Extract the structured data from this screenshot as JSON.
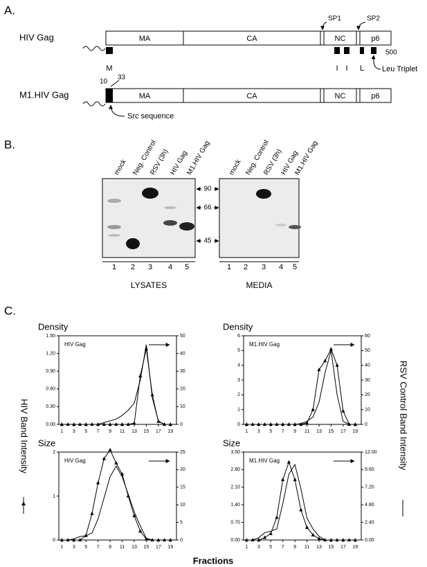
{
  "panel_a": {
    "label": "A.",
    "constructs": [
      {
        "name": "HIV Gag",
        "domains": [
          "MA",
          "CA",
          "NC",
          "p6"
        ]
      },
      {
        "name": "M1.HIV Gag",
        "domains": [
          "MA",
          "CA",
          "NC",
          "p6"
        ]
      }
    ],
    "spacers": [
      "SP1",
      "SP2"
    ],
    "markers": [
      "M",
      "I",
      "I",
      "L"
    ],
    "end_label": "500",
    "leu_label": "Leu Triplet",
    "src_positions": [
      "10",
      "33"
    ],
    "src_label": "Src sequence"
  },
  "panel_b": {
    "label": "B.",
    "lanes": [
      "mock",
      "Neg. Control",
      "RSV (3h)",
      "HIV Gag",
      "M1.HIV Gag"
    ],
    "lane_numbers": [
      "1",
      "2",
      "3",
      "4",
      "5"
    ],
    "size_markers": [
      "90",
      "66",
      "45"
    ],
    "gels": [
      "LYSATES",
      "MEDIA"
    ]
  },
  "panel_c": {
    "label": "C.",
    "y_label": "HIV  Band Intensity",
    "y2_label": "RSV Control Band Intensity",
    "x_label": "Fractions"
  },
  "chart_data": [
    {
      "type": "line",
      "title": "Density",
      "annotation": "HIV Gag",
      "x": [
        1,
        2,
        3,
        4,
        5,
        6,
        7,
        8,
        9,
        10,
        11,
        12,
        13,
        14,
        15,
        16,
        17,
        18,
        19
      ],
      "xlim": [
        0.5,
        20
      ],
      "xticks": [
        1,
        3,
        5,
        7,
        9,
        11,
        13,
        15,
        17,
        19
      ],
      "ylim": [
        0,
        1.5
      ],
      "yticks": [
        {
          "value": 0,
          "label": "0.00"
        },
        {
          "value": 0.3,
          "label": "0.30"
        },
        {
          "value": 0.6,
          "label": "0.60"
        },
        {
          "value": 0.9,
          "label": "0.90"
        },
        {
          "value": 1.2,
          "label": "1.20"
        },
        {
          "value": 1.5,
          "label": "1.50"
        }
      ],
      "y2lim": [
        0,
        50
      ],
      "y2ticks": [
        0,
        10,
        20,
        30,
        40,
        50
      ],
      "series": [
        {
          "color": "#000000",
          "marker": "triangle",
          "values": [
            0,
            0,
            0,
            0,
            0,
            0,
            0,
            0,
            0,
            0,
            0,
            0,
            0.02,
            0.82,
            1.28,
            0.5,
            0.05,
            0,
            0
          ]
        },
        {
          "color": "#000000",
          "marker": "none",
          "axis": "y2",
          "values": [
            0,
            0,
            0,
            0,
            0,
            0,
            0,
            1,
            2,
            3,
            5,
            8,
            12,
            25,
            45,
            15,
            2,
            0,
            0
          ]
        }
      ]
    },
    {
      "type": "line",
      "title": "Density",
      "annotation": "M1.HIV Gag",
      "x": [
        1,
        2,
        3,
        4,
        5,
        6,
        7,
        8,
        9,
        10,
        11,
        12,
        13,
        14,
        15,
        16,
        17,
        18,
        19
      ],
      "xlim": [
        0.5,
        20
      ],
      "xticks": [
        1,
        3,
        5,
        7,
        9,
        11,
        13,
        15,
        17,
        19
      ],
      "ylim": [
        0,
        6
      ],
      "yticks": [
        0,
        1,
        2,
        3,
        4,
        5,
        6
      ],
      "y2lim": [
        0,
        60
      ],
      "y2ticks": [
        0,
        10,
        20,
        30,
        40,
        50,
        60
      ],
      "series": [
        {
          "color": "#000000",
          "marker": "triangle",
          "values": [
            0,
            0,
            0,
            0,
            0,
            0,
            0,
            0,
            0,
            0,
            0.1,
            1.0,
            3.7,
            4.3,
            5.1,
            4.0,
            0.9,
            0,
            0
          ]
        },
        {
          "color": "#000000",
          "marker": "none",
          "axis": "y2",
          "values": [
            0,
            0,
            0,
            0,
            0,
            0,
            0,
            0,
            0,
            0.5,
            2,
            5,
            15,
            35,
            50,
            20,
            2,
            0,
            0
          ]
        }
      ]
    },
    {
      "type": "line",
      "title": "Size",
      "annotation": "HIV Gag",
      "x": [
        1,
        2,
        3,
        4,
        5,
        6,
        7,
        8,
        9,
        10,
        11,
        12,
        13,
        14,
        15,
        16,
        17,
        18,
        19
      ],
      "xlim": [
        0.5,
        20
      ],
      "xticks": [
        1,
        3,
        5,
        7,
        9,
        11,
        13,
        15,
        17,
        19
      ],
      "ylim": [
        0,
        2
      ],
      "yticks": [
        0,
        1,
        2
      ],
      "y2lim": [
        0,
        25
      ],
      "y2ticks": [
        0,
        5,
        10,
        15,
        20,
        25
      ],
      "series": [
        {
          "color": "#000000",
          "marker": "triangle",
          "values": [
            0,
            0,
            0,
            0,
            0.1,
            0.6,
            1.3,
            1.85,
            2.05,
            1.75,
            1.5,
            1.0,
            0.55,
            0.2,
            0.02,
            0,
            0,
            0,
            0
          ]
        },
        {
          "color": "#000000",
          "marker": "none",
          "axis": "y2",
          "values": [
            0,
            0,
            0.3,
            1,
            1.2,
            2,
            6,
            12,
            18,
            21,
            18,
            13,
            8,
            4,
            0.5,
            0,
            0,
            0,
            0
          ]
        }
      ]
    },
    {
      "type": "line",
      "title": "Size",
      "annotation": "M1.HIV Gag",
      "x": [
        1,
        2,
        3,
        4,
        5,
        6,
        7,
        8,
        9,
        10,
        11,
        12,
        13,
        14,
        15,
        16,
        17,
        18,
        19
      ],
      "xlim": [
        0.5,
        20
      ],
      "xticks": [
        1,
        3,
        5,
        7,
        9,
        11,
        13,
        15,
        17,
        19
      ],
      "ylim": [
        0,
        3.5
      ],
      "yticks": [
        {
          "value": 0,
          "label": "0.00"
        },
        {
          "value": 0.7,
          "label": "0.70"
        },
        {
          "value": 1.4,
          "label": "1.40"
        },
        {
          "value": 2.1,
          "label": "2.10"
        },
        {
          "value": 2.8,
          "label": "2.80"
        },
        {
          "value": 3.5,
          "label": "3.50"
        }
      ],
      "y2lim": [
        0,
        12
      ],
      "y2ticks": [
        {
          "value": 0,
          "label": "0.00"
        },
        {
          "value": 2.4,
          "label": "2.40"
        },
        {
          "value": 4.8,
          "label": "4.80"
        },
        {
          "value": 7.2,
          "label": "7.20"
        },
        {
          "value": 9.6,
          "label": "9.60"
        },
        {
          "value": 12,
          "label": "12.00"
        }
      ],
      "series": [
        {
          "color": "#000000",
          "marker": "triangle",
          "values": [
            0,
            0,
            0,
            0.1,
            0.25,
            0.9,
            2.4,
            3.1,
            2.4,
            1.2,
            0.5,
            0.2,
            0.05,
            0,
            0,
            0,
            0,
            0,
            0
          ]
        },
        {
          "color": "#000000",
          "marker": "none",
          "axis": "y2",
          "values": [
            0,
            0,
            0.3,
            1,
            1.2,
            1.5,
            5,
            9,
            10.3,
            7,
            3,
            1.5,
            0.5,
            0,
            0,
            0,
            0,
            0,
            0
          ]
        }
      ]
    }
  ]
}
